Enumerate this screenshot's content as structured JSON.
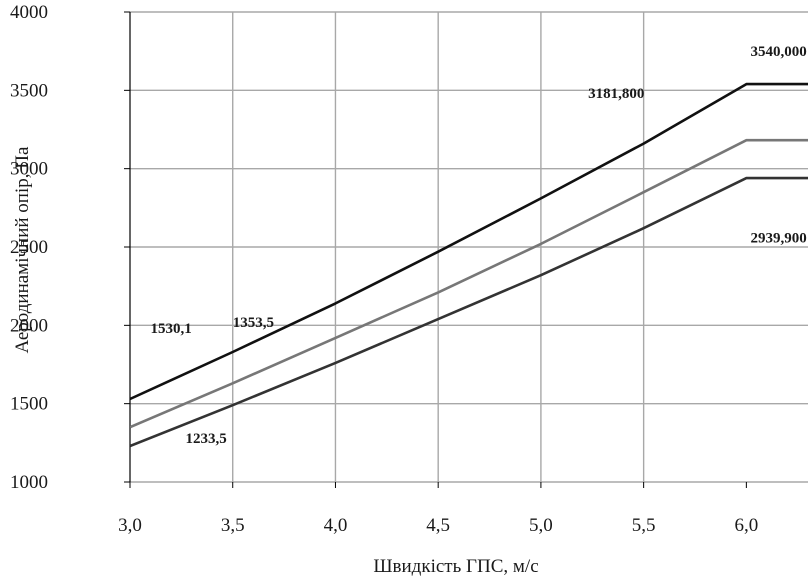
{
  "chart_data": {
    "type": "line",
    "xlabel": "Швидкість ГПС, м/с",
    "ylabel": "Аеродинамічний опір, Па",
    "xlim": [
      3.0,
      6.3
    ],
    "ylim": [
      1000,
      4000
    ],
    "x_ticks": [
      {
        "value": 3.0,
        "label": "3,0"
      },
      {
        "value": 3.5,
        "label": "3,5"
      },
      {
        "value": 4.0,
        "label": "4,0"
      },
      {
        "value": 4.5,
        "label": "4,5"
      },
      {
        "value": 5.0,
        "label": "5,0"
      },
      {
        "value": 5.5,
        "label": "5,5"
      },
      {
        "value": 6.0,
        "label": "6,0"
      }
    ],
    "y_ticks": [
      {
        "value": 1000,
        "label": "1000"
      },
      {
        "value": 1500,
        "label": "1500"
      },
      {
        "value": 2000,
        "label": "2000"
      },
      {
        "value": 2500,
        "label": "2500"
      },
      {
        "value": 3000,
        "label": "3000"
      },
      {
        "value": 3500,
        "label": "3500"
      },
      {
        "value": 4000,
        "label": "4000"
      }
    ],
    "vertical_grid_x": [
      3.5,
      4.0,
      4.5,
      5.0,
      5.5
    ],
    "grid": true,
    "legend": "none",
    "series": [
      {
        "color": "#111111",
        "x": [
          3.0,
          3.5,
          4.0,
          4.5,
          5.0,
          5.5,
          6.0,
          6.3
        ],
        "y": [
          1530,
          1830,
          2140,
          2470,
          2810,
          3160,
          3540,
          3540
        ]
      },
      {
        "color": "#777777",
        "x": [
          3.0,
          3.5,
          4.0,
          4.5,
          5.0,
          5.5,
          6.0,
          6.3
        ],
        "y": [
          1350,
          1630,
          1920,
          2210,
          2520,
          2850,
          3182,
          3182
        ]
      },
      {
        "color": "#333333",
        "x": [
          3.0,
          3.5,
          4.0,
          4.5,
          5.0,
          5.5,
          6.0,
          6.3
        ],
        "y": [
          1230,
          1490,
          1760,
          2040,
          2320,
          2620,
          2940,
          2940
        ]
      }
    ],
    "annotations": [
      {
        "text": "1530,1",
        "x": 3.1,
        "y": 1950
      },
      {
        "text": "1353,5",
        "x": 3.5,
        "y": 1990
      },
      {
        "text": "1233,5",
        "x": 3.27,
        "y": 1250
      },
      {
        "text": "3540,000",
        "x": 6.02,
        "y": 3720
      },
      {
        "text": "3181,800",
        "x": 5.23,
        "y": 3450
      },
      {
        "text": "2939,900",
        "x": 6.02,
        "y": 2530
      }
    ]
  }
}
